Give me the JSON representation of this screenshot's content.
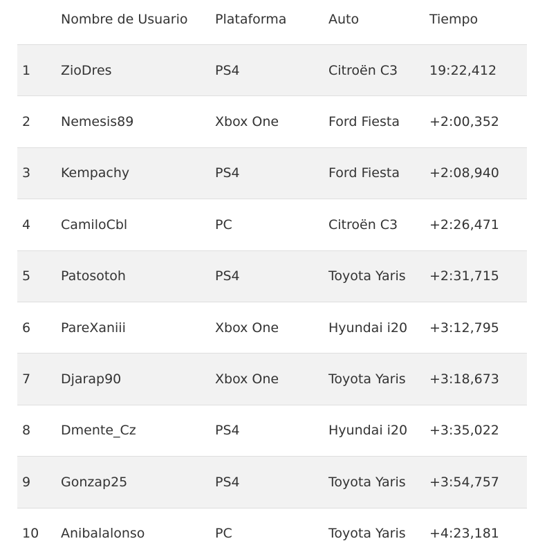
{
  "table": {
    "headers": {
      "position": "",
      "user": "Nombre de Usuario",
      "platform": "Plataforma",
      "car": "Auto",
      "time": "Tiempo"
    },
    "rows": [
      {
        "position": "1",
        "user": "ZioDres",
        "platform": "PS4",
        "car": "Citroën C3",
        "time": "19:22,412"
      },
      {
        "position": "2",
        "user": "Nemesis89",
        "platform": "Xbox One",
        "car": "Ford Fiesta",
        "time": "+2:00,352"
      },
      {
        "position": "3",
        "user": "Kempachy",
        "platform": "PS4",
        "car": "Ford Fiesta",
        "time": "+2:08,940"
      },
      {
        "position": "4",
        "user": "CamiloCbl",
        "platform": "PC",
        "car": "Citroën C3",
        "time": "+2:26,471"
      },
      {
        "position": "5",
        "user": "Patosotoh",
        "platform": "PS4",
        "car": "Toyota Yaris",
        "time": "+2:31,715"
      },
      {
        "position": "6",
        "user": "PareXaniii",
        "platform": "Xbox One",
        "car": "Hyundai i20",
        "time": "+3:12,795"
      },
      {
        "position": "7",
        "user": "Djarap90",
        "platform": "Xbox One",
        "car": "Toyota Yaris",
        "time": "+3:18,673"
      },
      {
        "position": "8",
        "user": "Dmente_Cz",
        "platform": "PS4",
        "car": "Hyundai i20",
        "time": "+3:35,022"
      },
      {
        "position": "9",
        "user": "Gonzap25",
        "platform": "PS4",
        "car": "Toyota Yaris",
        "time": "+3:54,757"
      },
      {
        "position": "10",
        "user": "Anibalalonso",
        "platform": "PC",
        "car": "Toyota Yaris",
        "time": "+4:23,181"
      }
    ]
  }
}
